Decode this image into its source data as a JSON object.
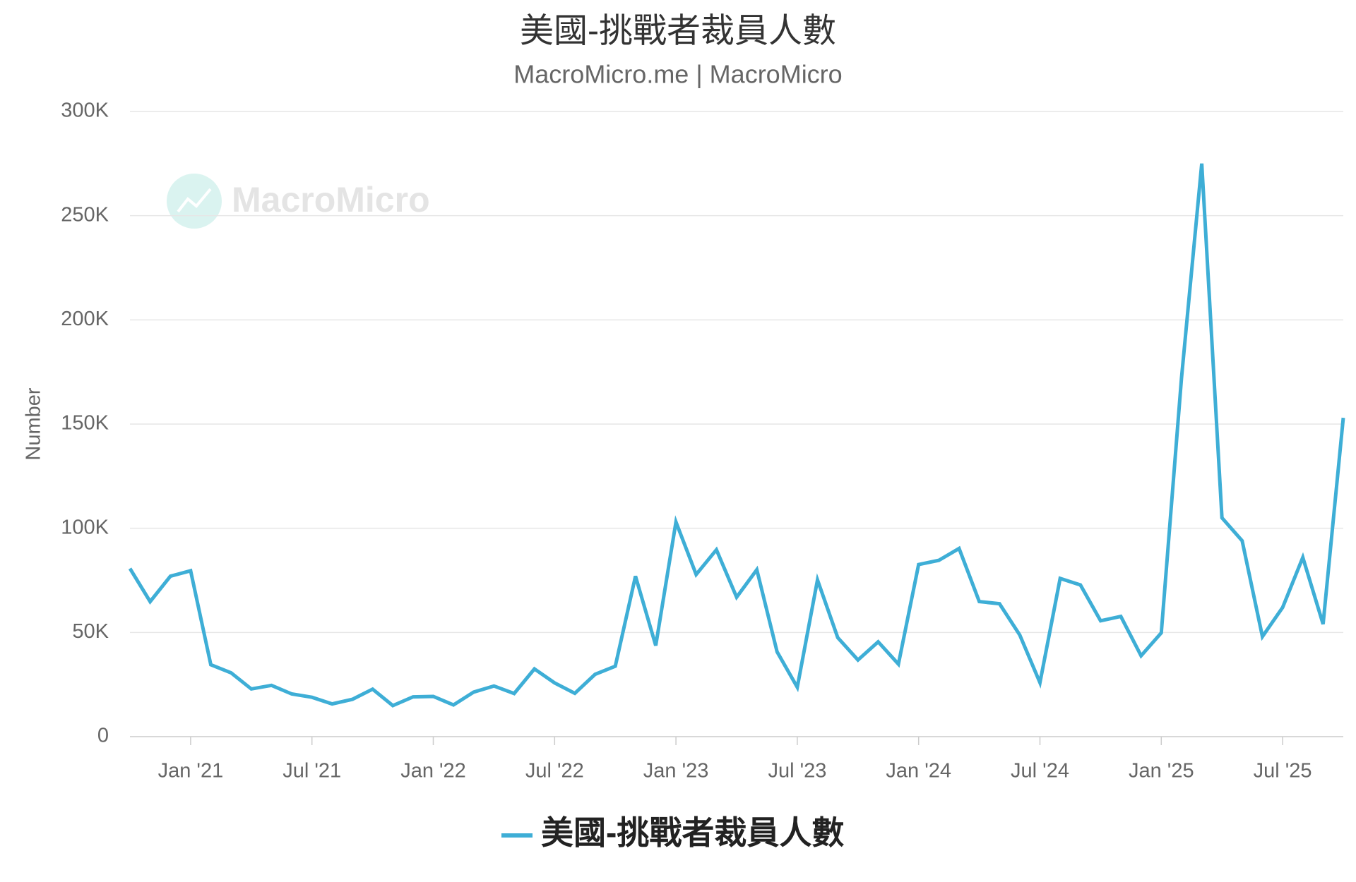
{
  "chart_data": {
    "type": "line",
    "title": "美國-挑戰者裁員人數",
    "subtitle": "MacroMicro.me | MacroMicro",
    "watermark": "MacroMicro",
    "y_label": "Number",
    "categories": [
      null,
      null,
      null,
      "Jan '21",
      null,
      null,
      null,
      null,
      null,
      "Jul '21",
      null,
      null,
      null,
      null,
      null,
      "Jan '22",
      null,
      null,
      null,
      null,
      null,
      "Jul '22",
      null,
      null,
      null,
      null,
      null,
      "Jan '23",
      null,
      null,
      null,
      null,
      null,
      "Jul '23",
      null,
      null,
      null,
      null,
      null,
      "Jan '24",
      null,
      null,
      null,
      null,
      null,
      "Jul '24",
      null,
      null,
      null,
      null,
      null,
      "Jan '25",
      null,
      null,
      null,
      null,
      null,
      "Jul '25",
      null,
      null,
      null
    ],
    "series": [
      {
        "name": "美國-挑戰者裁員人數",
        "color": "#3eaed6",
        "values": [
          80700,
          64800,
          77000,
          79600,
          34500,
          30600,
          22900,
          24600,
          20500,
          18900,
          15700,
          17900,
          22800,
          14900,
          19100,
          19300,
          15200,
          21400,
          24300,
          20700,
          32500,
          25800,
          20800,
          29900,
          33800,
          77000,
          43700,
          103000,
          77800,
          89700,
          66900,
          80100,
          40700,
          23700,
          75200,
          47500,
          36800,
          45500,
          34800,
          82600,
          84600,
          90300,
          64800,
          63800,
          48800,
          25900,
          75900,
          72800,
          55600,
          57700,
          38800,
          49800,
          172000,
          275000,
          105000,
          94000,
          48000,
          62000,
          86000,
          54000,
          153000
        ]
      }
    ],
    "ylim": [
      0,
      300000
    ],
    "yticks": [
      0,
      {
        "value": 50000,
        "label": "50K"
      },
      {
        "value": 100000,
        "label": "100K"
      },
      {
        "value": 150000,
        "label": "150K"
      },
      {
        "value": 200000,
        "label": "200K"
      },
      {
        "value": 250000,
        "label": "250K"
      },
      {
        "value": 300000,
        "label": "300K"
      }
    ],
    "grid": true
  }
}
